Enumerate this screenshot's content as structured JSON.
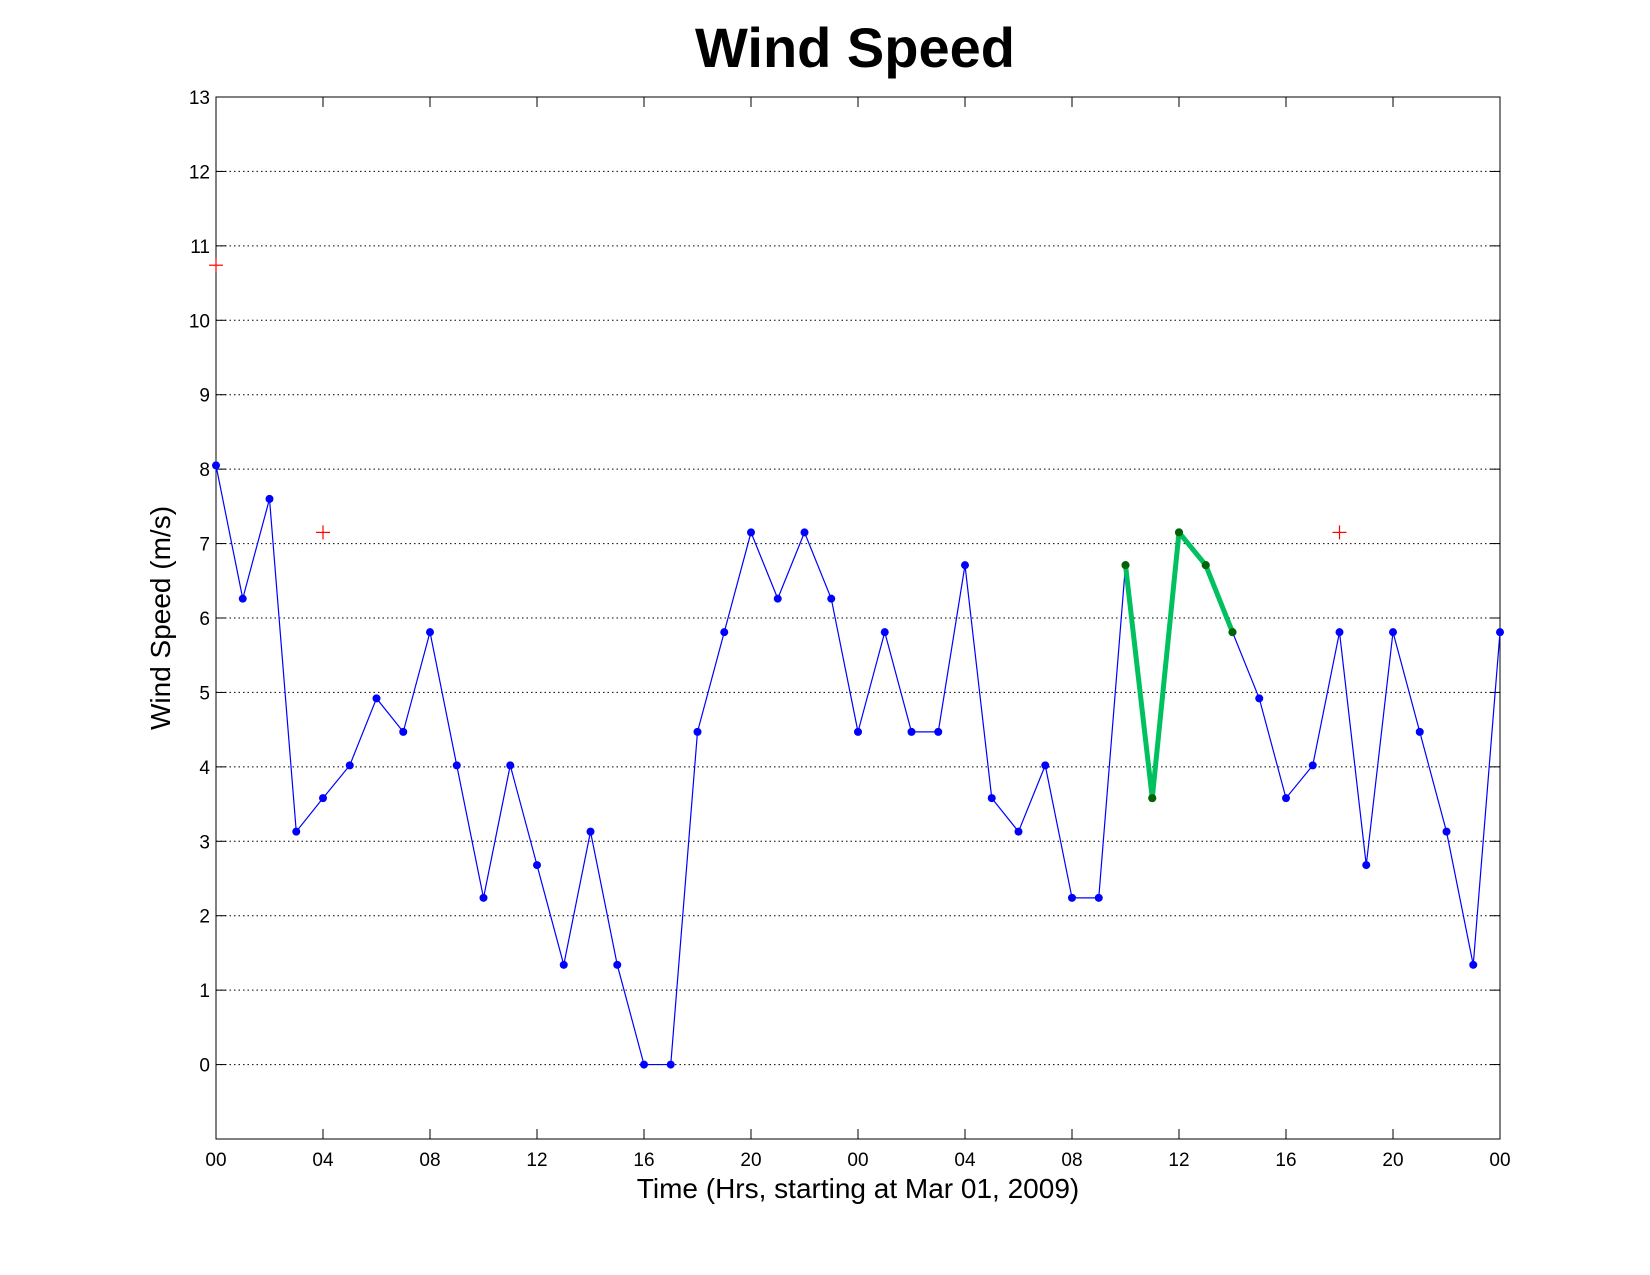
{
  "chart_data": {
    "type": "line",
    "title": "Wind Speed",
    "xlabel": "Time (Hrs, starting at Mar 01, 2009)",
    "ylabel": "Wind Speed (m/s)",
    "xlim": [
      0,
      48
    ],
    "ylim": [
      -1,
      13
    ],
    "grid": "y-dotted",
    "x_ticks": [
      {
        "hour": 0,
        "label": "00"
      },
      {
        "hour": 4,
        "label": "04"
      },
      {
        "hour": 8,
        "label": "08"
      },
      {
        "hour": 12,
        "label": "12"
      },
      {
        "hour": 16,
        "label": "16"
      },
      {
        "hour": 20,
        "label": "20"
      },
      {
        "hour": 24,
        "label": "00"
      },
      {
        "hour": 28,
        "label": "04"
      },
      {
        "hour": 32,
        "label": "08"
      },
      {
        "hour": 36,
        "label": "12"
      },
      {
        "hour": 40,
        "label": "16"
      },
      {
        "hour": 44,
        "label": "20"
      },
      {
        "hour": 48,
        "label": "00"
      }
    ],
    "y_ticks": [
      {
        "value": 0,
        "label": "0"
      },
      {
        "value": 1,
        "label": "1"
      },
      {
        "value": 2,
        "label": "2"
      },
      {
        "value": 3,
        "label": "3"
      },
      {
        "value": 4,
        "label": "4"
      },
      {
        "value": 5,
        "label": "5"
      },
      {
        "value": 6,
        "label": "6"
      },
      {
        "value": 7,
        "label": "7"
      },
      {
        "value": 8,
        "label": "8"
      },
      {
        "value": 9,
        "label": "9"
      },
      {
        "value": 10,
        "label": "10"
      },
      {
        "value": 11,
        "label": "11"
      },
      {
        "value": 12,
        "label": "12"
      },
      {
        "value": 13,
        "label": "13"
      }
    ],
    "series": [
      {
        "style": "blue-line-dot-markers",
        "color": "#0000ff",
        "x": [
          0,
          1,
          2,
          3,
          4,
          5,
          6,
          7,
          8,
          9,
          10,
          11,
          12,
          13,
          14,
          15,
          16,
          17,
          18,
          19,
          20,
          21,
          22,
          23,
          24,
          25,
          26,
          27,
          28,
          29,
          30,
          31,
          32,
          33,
          34,
          35,
          36,
          37,
          38,
          39,
          40,
          41,
          42,
          43,
          44,
          45,
          46,
          47,
          48
        ],
        "y": [
          8.05,
          6.26,
          7.6,
          3.13,
          3.58,
          4.02,
          4.92,
          4.47,
          5.81,
          4.02,
          2.24,
          4.02,
          2.68,
          1.34,
          3.13,
          1.34,
          0,
          0,
          4.47,
          5.81,
          7.15,
          6.26,
          7.15,
          6.26,
          4.47,
          5.81,
          4.47,
          4.47,
          6.71,
          3.58,
          3.13,
          4.02,
          2.24,
          2.24,
          6.71,
          3.58,
          7.15,
          6.71,
          5.81,
          4.92,
          3.58,
          4.02,
          5.81,
          2.68,
          5.81,
          4.47,
          3.13,
          1.34,
          5.81
        ]
      },
      {
        "style": "green-thick-line-dot-markers",
        "color": "#00c060",
        "marker_color": "#006400",
        "x": [
          34,
          35,
          36,
          37,
          38
        ],
        "y": [
          6.71,
          3.58,
          7.15,
          6.71,
          5.81
        ]
      },
      {
        "style": "red-plus-markers",
        "color": "#ff0000",
        "x": [
          0,
          4,
          42
        ],
        "y": [
          10.74,
          7.15,
          7.15
        ]
      }
    ]
  }
}
